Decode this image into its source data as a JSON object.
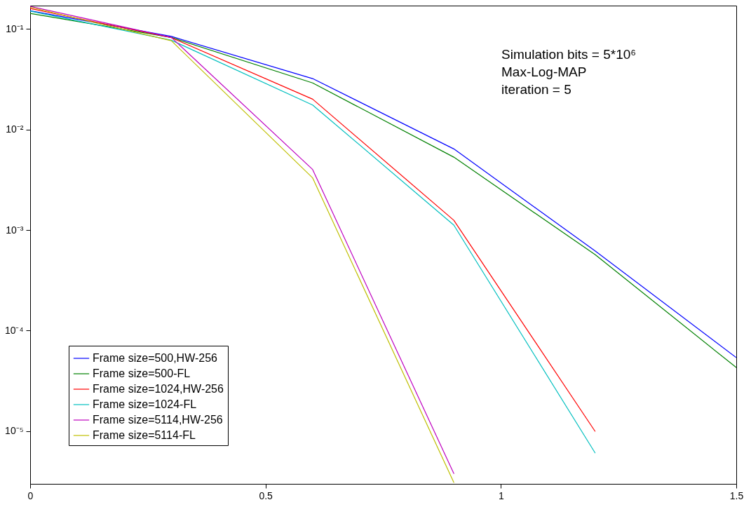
{
  "chart_data": {
    "type": "line",
    "x": [
      0,
      0.3,
      0.6,
      0.9,
      1.2,
      1.5
    ],
    "xlim": [
      0,
      1.5
    ],
    "xticks": [
      0,
      0.5,
      1,
      1.5
    ],
    "ylim": [
      3e-06,
      0.17
    ],
    "log": true,
    "yticks": [
      {
        "value": 0.1,
        "label": "10⁻¹"
      },
      {
        "value": 0.01,
        "label": "10⁻²"
      },
      {
        "value": 0.001,
        "label": "10⁻³"
      },
      {
        "value": 0.0001,
        "label": "10⁻⁴"
      },
      {
        "value": 1e-05,
        "label": "10⁻⁵"
      }
    ],
    "grid": false,
    "legend": "bottom left",
    "marker": "none",
    "line_style": "solid",
    "series": [
      {
        "name": "Frame size=500,HW-256",
        "color": "#0000ff",
        "values": [
          0.151,
          0.084,
          0.032,
          0.0064,
          0.00062,
          5.4e-05
        ]
      },
      {
        "name": "Frame size=500-FL",
        "color": "#008000",
        "values": [
          0.142,
          0.082,
          0.029,
          0.0053,
          0.00057,
          4.3e-05
        ]
      },
      {
        "name": "Frame size=1024,HW-256",
        "color": "#ff0000",
        "values": [
          0.159,
          0.0816,
          0.02,
          0.00125,
          1e-05,
          null
        ]
      },
      {
        "name": "Frame size=1024-FL",
        "color": "#00bfbf",
        "values": [
          0.15,
          0.077,
          0.0175,
          0.00112,
          6.1e-06,
          null
        ]
      },
      {
        "name": "Frame size=5114,HW-256",
        "color": "#bf00bf",
        "values": [
          0.167,
          0.082,
          0.004,
          3.8e-06,
          null,
          null
        ]
      },
      {
        "name": "Frame size=5114-FL",
        "color": "#bfbf00",
        "values": [
          0.164,
          0.076,
          0.0033,
          3.1e-06,
          null,
          null
        ]
      }
    ],
    "annotations": [
      "Simulation bits = 5*10⁶",
      "Max-Log-MAP",
      "iteration =  5"
    ]
  }
}
